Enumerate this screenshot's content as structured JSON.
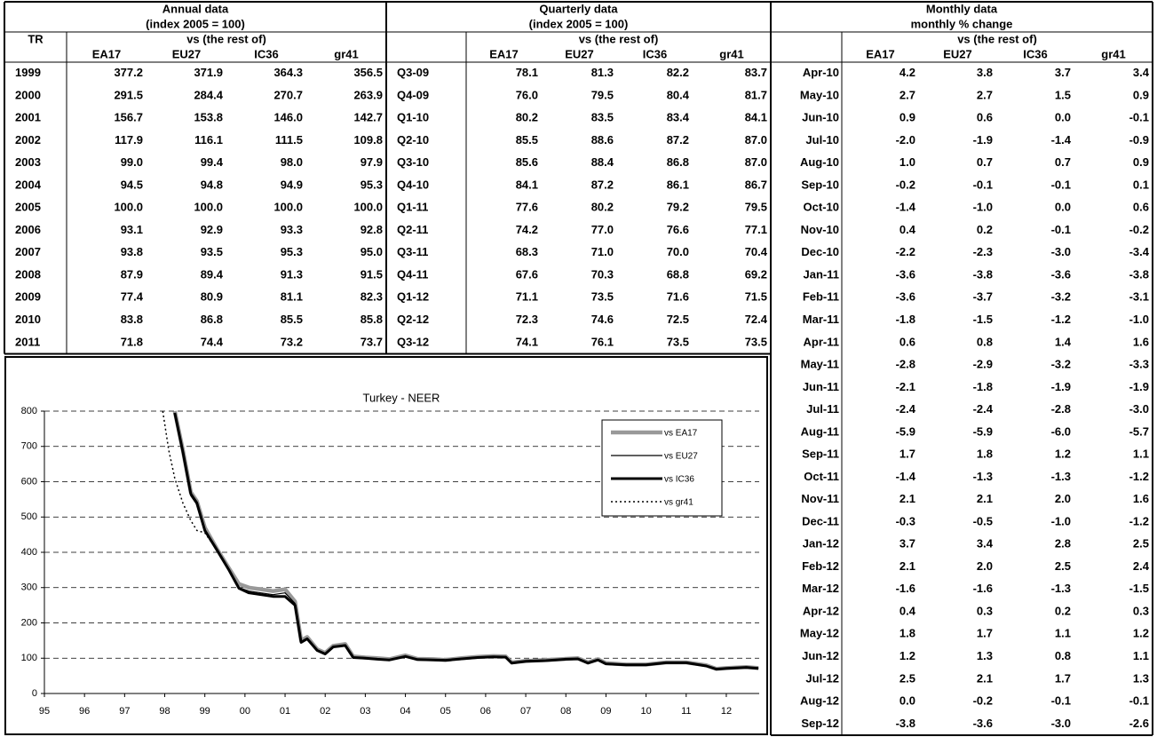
{
  "annual": {
    "title": "Annual data",
    "subtitle": "(index 2005 = 100)",
    "row_label": "TR",
    "group_label": "vs (the rest of)",
    "columns": [
      "EA17",
      "EU27",
      "IC36",
      "gr41"
    ],
    "rows": [
      [
        "1999",
        "377.2",
        "371.9",
        "364.3",
        "356.5"
      ],
      [
        "2000",
        "291.5",
        "284.4",
        "270.7",
        "263.9"
      ],
      [
        "2001",
        "156.7",
        "153.8",
        "146.0",
        "142.7"
      ],
      [
        "2002",
        "117.9",
        "116.1",
        "111.5",
        "109.8"
      ],
      [
        "2003",
        "99.0",
        "99.4",
        "98.0",
        "97.9"
      ],
      [
        "2004",
        "94.5",
        "94.8",
        "94.9",
        "95.3"
      ],
      [
        "2005",
        "100.0",
        "100.0",
        "100.0",
        "100.0"
      ],
      [
        "2006",
        "93.1",
        "92.9",
        "93.3",
        "92.8"
      ],
      [
        "2007",
        "93.8",
        "93.5",
        "95.3",
        "95.0"
      ],
      [
        "2008",
        "87.9",
        "89.4",
        "91.3",
        "91.5"
      ],
      [
        "2009",
        "77.4",
        "80.9",
        "81.1",
        "82.3"
      ],
      [
        "2010",
        "83.8",
        "86.8",
        "85.5",
        "85.8"
      ],
      [
        "2011",
        "71.8",
        "74.4",
        "73.2",
        "73.7"
      ]
    ]
  },
  "quarterly": {
    "title": "Quarterly data",
    "subtitle": "(index 2005 = 100)",
    "group_label": "vs (the rest of)",
    "columns": [
      "EA17",
      "EU27",
      "IC36",
      "gr41"
    ],
    "rows": [
      [
        "Q3-09",
        "78.1",
        "81.3",
        "82.2",
        "83.7"
      ],
      [
        "Q4-09",
        "76.0",
        "79.5",
        "80.4",
        "81.7"
      ],
      [
        "Q1-10",
        "80.2",
        "83.5",
        "83.4",
        "84.1"
      ],
      [
        "Q2-10",
        "85.5",
        "88.6",
        "87.2",
        "87.0"
      ],
      [
        "Q3-10",
        "85.6",
        "88.4",
        "86.8",
        "87.0"
      ],
      [
        "Q4-10",
        "84.1",
        "87.2",
        "86.1",
        "86.7"
      ],
      [
        "Q1-11",
        "77.6",
        "80.2",
        "79.2",
        "79.5"
      ],
      [
        "Q2-11",
        "74.2",
        "77.0",
        "76.6",
        "77.1"
      ],
      [
        "Q3-11",
        "68.3",
        "71.0",
        "70.0",
        "70.4"
      ],
      [
        "Q4-11",
        "67.6",
        "70.3",
        "68.8",
        "69.2"
      ],
      [
        "Q1-12",
        "71.1",
        "73.5",
        "71.6",
        "71.5"
      ],
      [
        "Q2-12",
        "72.3",
        "74.6",
        "72.5",
        "72.4"
      ],
      [
        "Q3-12",
        "74.1",
        "76.1",
        "73.5",
        "73.5"
      ]
    ]
  },
  "monthly": {
    "title": "Monthly data",
    "subtitle": "monthly % change",
    "group_label": "vs (the rest of)",
    "columns": [
      "EA17",
      "EU27",
      "IC36",
      "gr41"
    ],
    "rows": [
      [
        "Apr-10",
        "4.2",
        "3.8",
        "3.7",
        "3.4"
      ],
      [
        "May-10",
        "2.7",
        "2.7",
        "1.5",
        "0.9"
      ],
      [
        "Jun-10",
        "0.9",
        "0.6",
        "0.0",
        "-0.1"
      ],
      [
        "Jul-10",
        "-2.0",
        "-1.9",
        "-1.4",
        "-0.9"
      ],
      [
        "Aug-10",
        "1.0",
        "0.7",
        "0.7",
        "0.9"
      ],
      [
        "Sep-10",
        "-0.2",
        "-0.1",
        "-0.1",
        "0.1"
      ],
      [
        "Oct-10",
        "-1.4",
        "-1.0",
        "0.0",
        "0.6"
      ],
      [
        "Nov-10",
        "0.4",
        "0.2",
        "-0.1",
        "-0.2"
      ],
      [
        "Dec-10",
        "-2.2",
        "-2.3",
        "-3.0",
        "-3.4"
      ],
      [
        "Jan-11",
        "-3.6",
        "-3.8",
        "-3.6",
        "-3.8"
      ],
      [
        "Feb-11",
        "-3.6",
        "-3.7",
        "-3.2",
        "-3.1"
      ],
      [
        "Mar-11",
        "-1.8",
        "-1.5",
        "-1.2",
        "-1.0"
      ],
      [
        "Apr-11",
        "0.6",
        "0.8",
        "1.4",
        "1.6"
      ],
      [
        "May-11",
        "-2.8",
        "-2.9",
        "-3.2",
        "-3.3"
      ],
      [
        "Jun-11",
        "-2.1",
        "-1.8",
        "-1.9",
        "-1.9"
      ],
      [
        "Jul-11",
        "-2.4",
        "-2.4",
        "-2.8",
        "-3.0"
      ],
      [
        "Aug-11",
        "-5.9",
        "-5.9",
        "-6.0",
        "-5.7"
      ],
      [
        "Sep-11",
        "1.7",
        "1.8",
        "1.2",
        "1.1"
      ],
      [
        "Oct-11",
        "-1.4",
        "-1.3",
        "-1.3",
        "-1.2"
      ],
      [
        "Nov-11",
        "2.1",
        "2.1",
        "2.0",
        "1.6"
      ],
      [
        "Dec-11",
        "-0.3",
        "-0.5",
        "-1.0",
        "-1.2"
      ],
      [
        "Jan-12",
        "3.7",
        "3.4",
        "2.8",
        "2.5"
      ],
      [
        "Feb-12",
        "2.1",
        "2.0",
        "2.5",
        "2.4"
      ],
      [
        "Mar-12",
        "-1.6",
        "-1.6",
        "-1.3",
        "-1.5"
      ],
      [
        "Apr-12",
        "0.4",
        "0.3",
        "0.2",
        "0.3"
      ],
      [
        "May-12",
        "1.8",
        "1.7",
        "1.1",
        "1.2"
      ],
      [
        "Jun-12",
        "1.2",
        "1.3",
        "0.8",
        "1.1"
      ],
      [
        "Jul-12",
        "2.5",
        "2.1",
        "1.7",
        "1.3"
      ],
      [
        "Aug-12",
        "0.0",
        "-0.2",
        "-0.1",
        "-0.1"
      ],
      [
        "Sep-12",
        "-3.8",
        "-3.6",
        "-3.0",
        "-2.6"
      ]
    ]
  },
  "chart_data": {
    "type": "line",
    "title": "Turkey - NEER",
    "grid": true,
    "legend": "upper right",
    "x": [
      1997.95,
      1998.1,
      1998.25,
      1998.45,
      1998.65,
      1998.8,
      1999.0,
      1999.3,
      1999.6,
      1999.85,
      2000.1,
      2000.4,
      2000.7,
      2001.0,
      2001.25,
      2001.4,
      2001.55,
      2001.8,
      2002.0,
      2002.2,
      2002.5,
      2002.7,
      2003.0,
      2003.3,
      2003.6,
      2004.0,
      2004.3,
      2004.7,
      2005.0,
      2005.4,
      2005.8,
      2006.2,
      2006.5,
      2006.65,
      2007.0,
      2007.5,
      2008.0,
      2008.3,
      2008.55,
      2008.8,
      2009.0,
      2009.5,
      2010.0,
      2010.5,
      2011.0,
      2011.5,
      2011.75,
      2012.0,
      2012.5,
      2012.8
    ],
    "series": [
      {
        "name": "vs EA17",
        "color": "#999999",
        "values": [
          null,
          null,
          800,
          690,
          570,
          545,
          470,
          410,
          355,
          310,
          300,
          295,
          290,
          295,
          260,
          150,
          160,
          125,
          115,
          135,
          140,
          105,
          102,
          100,
          97,
          108,
          98,
          97,
          95,
          100,
          104,
          106,
          105,
          88,
          92,
          95,
          98,
          100,
          88,
          97,
          86,
          82,
          82,
          88,
          88,
          80,
          70,
          72,
          75,
          72
        ]
      },
      {
        "name": "vs EU27",
        "color": "#000000",
        "values": [
          null,
          null,
          790,
          680,
          560,
          535,
          460,
          405,
          350,
          300,
          290,
          285,
          280,
          285,
          255,
          145,
          155,
          122,
          112,
          132,
          138,
          102,
          100,
          98,
          95,
          106,
          96,
          95,
          93,
          98,
          102,
          104,
          103,
          86,
          90,
          93,
          96,
          98,
          86,
          95,
          84,
          80,
          80,
          86,
          86,
          78,
          68,
          70,
          73,
          70
        ]
      },
      {
        "name": "vs IC36",
        "color": "#000000",
        "values": [
          null,
          null,
          795,
          685,
          565,
          540,
          462,
          407,
          350,
          298,
          285,
          280,
          275,
          275,
          250,
          145,
          155,
          122,
          112,
          132,
          136,
          102,
          100,
          97,
          95,
          105,
          96,
          95,
          94,
          98,
          102,
          104,
          103,
          86,
          91,
          93,
          97,
          98,
          86,
          95,
          84,
          81,
          81,
          87,
          87,
          78,
          69,
          71,
          74,
          71
        ]
      },
      {
        "name": "vs gr41",
        "color": "#000000",
        "values": [
          800,
          690,
          610,
          540,
          490,
          462,
          455,
          407,
          350,
          298,
          285,
          280,
          275,
          275,
          250,
          145,
          155,
          122,
          112,
          132,
          136,
          102,
          100,
          97,
          95,
          105,
          96,
          95,
          94,
          98,
          102,
          104,
          103,
          86,
          91,
          93,
          97,
          98,
          86,
          95,
          84,
          81,
          81,
          87,
          87,
          78,
          69,
          71,
          74,
          71
        ]
      }
    ],
    "xlim": [
      1995,
      2012.82
    ],
    "xticks": [
      {
        "value": 1995,
        "label": "95"
      },
      {
        "value": 1996,
        "label": "96"
      },
      {
        "value": 1997,
        "label": "97"
      },
      {
        "value": 1998,
        "label": "98"
      },
      {
        "value": 1999,
        "label": "99"
      },
      {
        "value": 2000,
        "label": "00"
      },
      {
        "value": 2001,
        "label": "01"
      },
      {
        "value": 2002,
        "label": "02"
      },
      {
        "value": 2003,
        "label": "03"
      },
      {
        "value": 2004,
        "label": "04"
      },
      {
        "value": 2005,
        "label": "05"
      },
      {
        "value": 2006,
        "label": "06"
      },
      {
        "value": 2007,
        "label": "07"
      },
      {
        "value": 2008,
        "label": "08"
      },
      {
        "value": 2009,
        "label": "09"
      },
      {
        "value": 2010,
        "label": "10"
      },
      {
        "value": 2011,
        "label": "11"
      },
      {
        "value": 2012,
        "label": "12"
      }
    ],
    "ylim": [
      0,
      800
    ],
    "yticks": [
      0,
      100,
      200,
      300,
      400,
      500,
      600,
      700,
      800
    ]
  }
}
